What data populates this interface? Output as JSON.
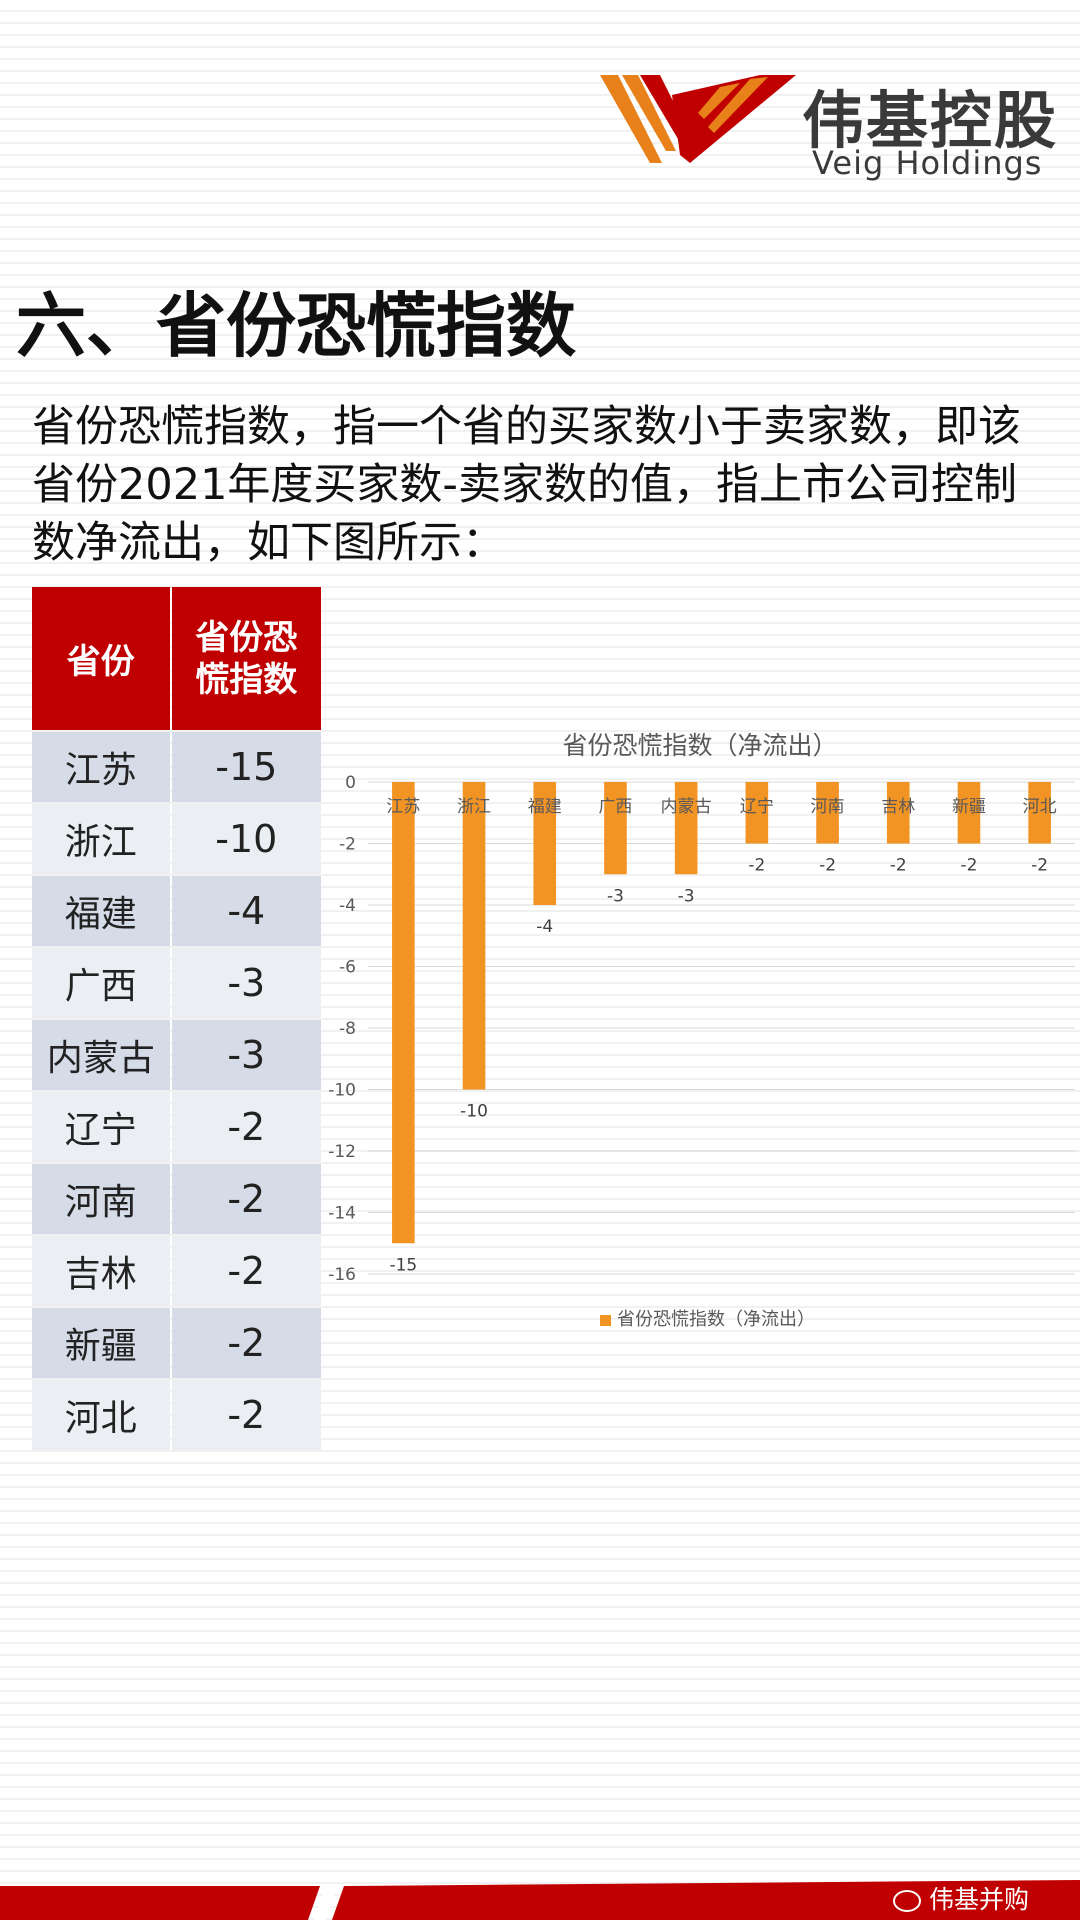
{
  "logo": {
    "name_cn": "伟基控股",
    "name_en": "Veig Holdings"
  },
  "section_title": "六、省份恐慌指数",
  "intro_text": "省份恐慌指数，指一个省的买家数小于卖家数，即该省份2021年度买家数-卖家数的值，指上市公司控制数净流出，如下图所示：",
  "table": {
    "headers": [
      "省份",
      "省份恐慌指数"
    ],
    "rows": [
      {
        "province": "江苏",
        "value": "-15"
      },
      {
        "province": "浙江",
        "value": "-10"
      },
      {
        "province": "福建",
        "value": "-4"
      },
      {
        "province": "广西",
        "value": "-3"
      },
      {
        "province": "内蒙古",
        "value": "-3"
      },
      {
        "province": "辽宁",
        "value": "-2"
      },
      {
        "province": "河南",
        "value": "-2"
      },
      {
        "province": "吉林",
        "value": "-2"
      },
      {
        "province": "新疆",
        "value": "-2"
      },
      {
        "province": "河北",
        "value": "-2"
      }
    ]
  },
  "chart_data": {
    "type": "bar",
    "title": "省份恐慌指数（净流出）",
    "categories": [
      "江苏",
      "浙江",
      "福建",
      "广西",
      "内蒙古",
      "辽宁",
      "河南",
      "吉林",
      "新疆",
      "河北"
    ],
    "series": [
      {
        "name": "省份恐慌指数（净流出）",
        "values": [
          -15,
          -10,
          -4,
          -3,
          -3,
          -2,
          -2,
          -2,
          -2,
          -2
        ]
      }
    ],
    "ylim": [
      -16,
      0
    ],
    "yticks": [
      0,
      -2,
      -4,
      -6,
      -8,
      -10,
      -12,
      -14,
      -16
    ],
    "grid": true,
    "legend": "bottom",
    "bar_color": "#f29424"
  },
  "footer": {
    "wechat_label": "伟基并购"
  },
  "colors": {
    "brand_red": "#c00000",
    "brand_orange": "#e8811a",
    "bar": "#f29424"
  }
}
